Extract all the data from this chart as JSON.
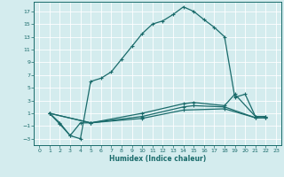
{
  "bg_color": "#d4ecee",
  "grid_color": "#ffffff",
  "line_color": "#1a6b6b",
  "xlabel": "Humidex (Indice chaleur)",
  "xlim": [
    -0.5,
    23.5
  ],
  "ylim": [
    -4,
    18.5
  ],
  "yticks": [
    -3,
    -1,
    1,
    3,
    5,
    7,
    9,
    11,
    13,
    15,
    17
  ],
  "xticks": [
    0,
    1,
    2,
    3,
    4,
    5,
    6,
    7,
    8,
    9,
    10,
    11,
    12,
    13,
    14,
    15,
    16,
    17,
    18,
    19,
    20,
    21,
    22,
    23
  ],
  "curve1_x": [
    1,
    2,
    3,
    4,
    5,
    6,
    7,
    8,
    9,
    10,
    11,
    12,
    13,
    14,
    15,
    16,
    17,
    18,
    19,
    20,
    21,
    22
  ],
  "curve1_y": [
    1,
    -0.7,
    -2.5,
    -3.0,
    6.0,
    6.5,
    7.5,
    9.5,
    11.5,
    13.5,
    15.0,
    15.5,
    16.5,
    17.7,
    17.0,
    15.7,
    14.5,
    13.0,
    3.5,
    4.0,
    0.5,
    0.5
  ],
  "curve2_x": [
    1,
    2,
    3,
    4,
    5,
    10,
    14,
    15,
    18,
    19,
    21,
    22
  ],
  "curve2_y": [
    1,
    -0.5,
    -2.5,
    -0.5,
    -0.5,
    1.0,
    2.5,
    2.7,
    2.2,
    4.0,
    0.5,
    0.5
  ],
  "curve3_x": [
    1,
    5,
    10,
    14,
    15,
    18,
    21,
    22
  ],
  "curve3_y": [
    1,
    -0.5,
    0.5,
    2.0,
    2.2,
    2.0,
    0.3,
    0.3
  ],
  "curve4_x": [
    1,
    5,
    10,
    14,
    18,
    21,
    22
  ],
  "curve4_y": [
    1,
    -0.5,
    0.2,
    1.5,
    1.7,
    0.3,
    0.3
  ]
}
